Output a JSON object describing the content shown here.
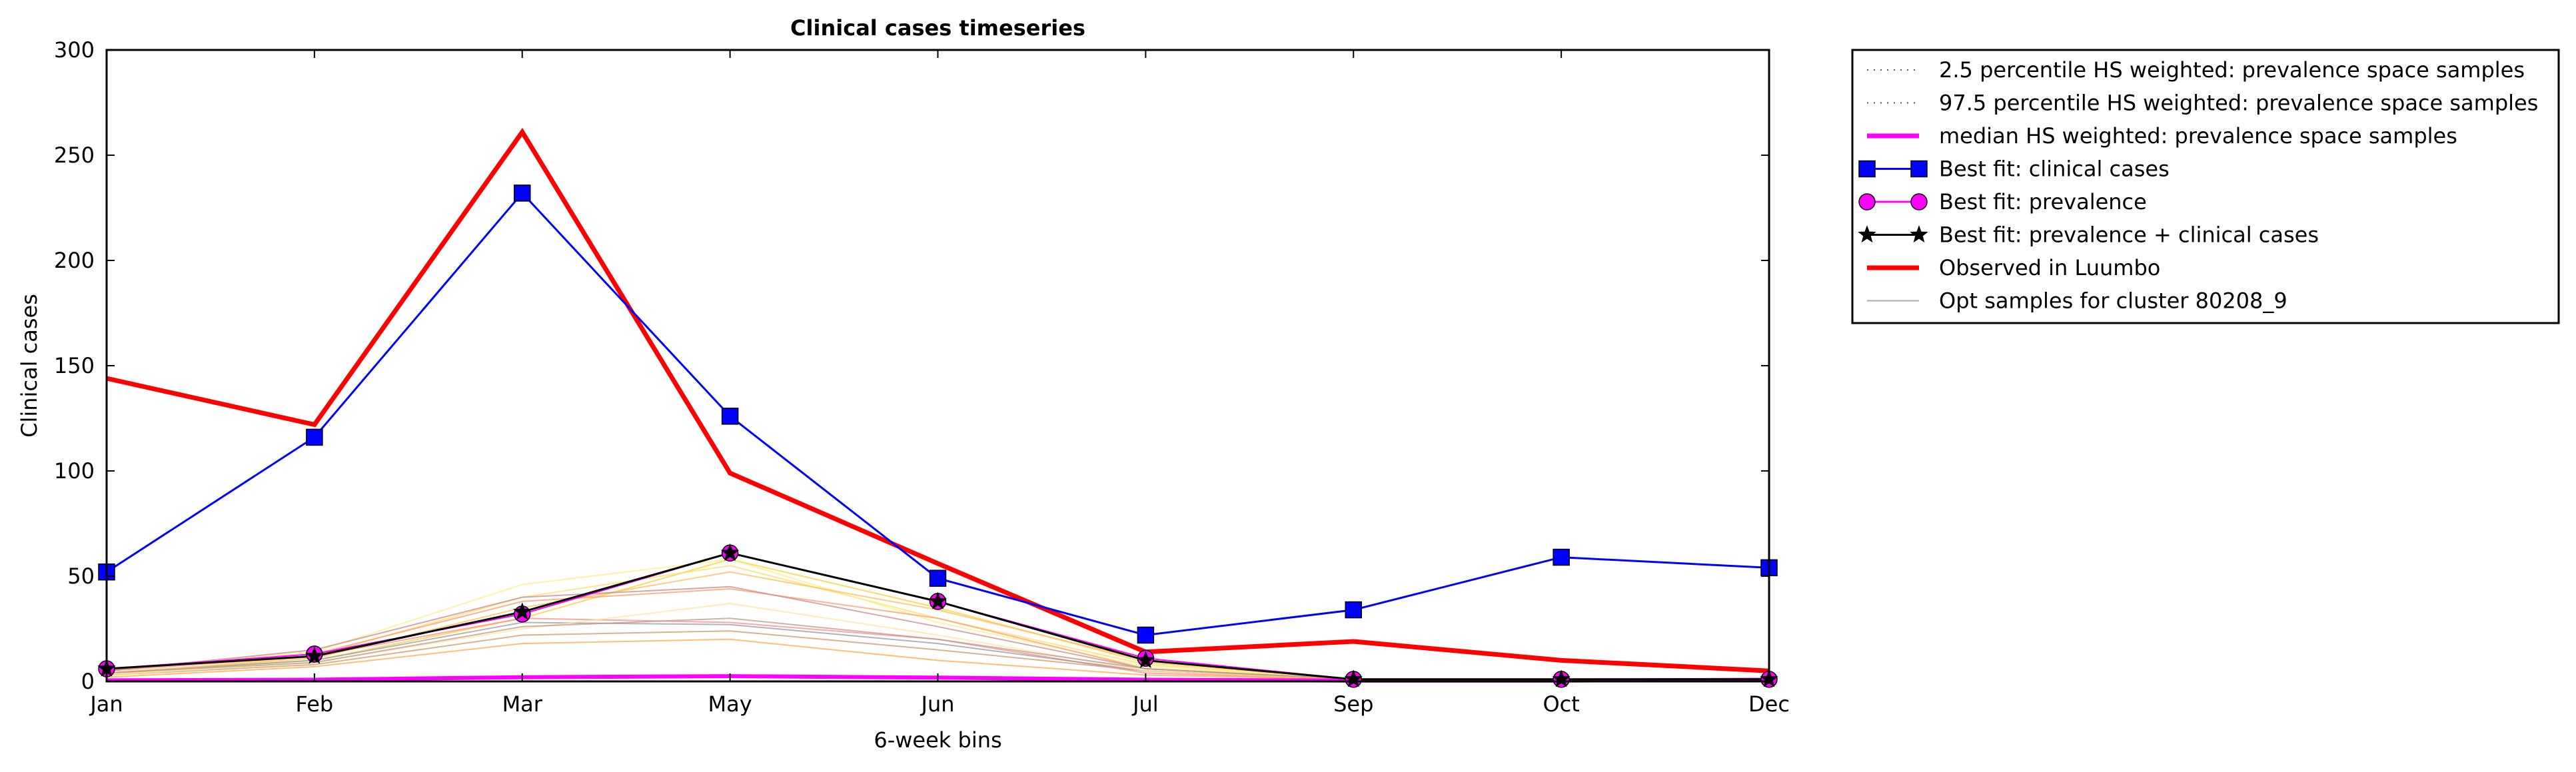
{
  "chart_data": {
    "type": "line",
    "title": "Clinical cases timeseries",
    "xlabel": "6-week bins",
    "ylabel": "Clinical cases",
    "categories": [
      "Jan",
      "Feb",
      "Mar",
      "May",
      "Jun",
      "Jul",
      "Sep",
      "Oct",
      "Dec"
    ],
    "ylim": [
      0,
      300
    ],
    "yticks": [
      0,
      50,
      100,
      150,
      200,
      250,
      300
    ],
    "grid": false,
    "legend_position": "outside-right",
    "series": [
      {
        "name": "2.5 percentile HS weighted: prevalence space samples",
        "color": "#555555",
        "style": "dotted",
        "values": [
          0.5,
          0.5,
          1.5,
          2,
          1.5,
          0.5,
          0.3,
          0.3,
          0.5
        ]
      },
      {
        "name": "97.5 percentile HS weighted: prevalence space samples",
        "color": "#555555",
        "style": "dotted",
        "values": [
          1,
          1,
          2.5,
          3,
          2,
          1,
          0.5,
          0.5,
          1
        ]
      },
      {
        "name": "median HS weighted: prevalence space samples",
        "color": "#ff00ff",
        "style": "thick",
        "values": [
          0.5,
          0.8,
          2,
          2.5,
          1.8,
          0.8,
          0.4,
          0.4,
          0.8
        ]
      },
      {
        "name": "Best fit: clinical cases",
        "color": "#0000ff",
        "marker": "square",
        "values": [
          52,
          116,
          232,
          126,
          49,
          22,
          34,
          59,
          54
        ]
      },
      {
        "name": "Best fit: prevalence",
        "color": "#ff00ff",
        "marker": "circle",
        "values": [
          6,
          13,
          32,
          61,
          38,
          11,
          1,
          1,
          1
        ]
      },
      {
        "name": "Best fit: prevalence + clinical cases",
        "color": "#000000",
        "marker": "star",
        "values": [
          6,
          12,
          33,
          61,
          38,
          10,
          1,
          1,
          1
        ]
      },
      {
        "name": "Observed in Luumbo",
        "color": "#ff0000",
        "style": "thick",
        "values": [
          144,
          122,
          261,
          99,
          56,
          14,
          19,
          10,
          5
        ]
      },
      {
        "name": "Opt samples for cluster 80208_9",
        "color": "#aaaaaa",
        "style": "thin",
        "samples": [
          {
            "color": "#ffcc33",
            "values": [
              4,
              10,
              30,
              58,
              35,
              9,
              1,
              1,
              1
            ]
          },
          {
            "color": "#ffdd66",
            "values": [
              3,
              12,
              40,
              55,
              30,
              8,
              1,
              1,
              1
            ]
          },
          {
            "color": "#ffee88",
            "values": [
              5,
              14,
              46,
              58,
              28,
              7,
              1,
              1,
              1
            ]
          },
          {
            "color": "#ff9966",
            "values": [
              6,
              13,
              38,
              44,
              30,
              6,
              1,
              1,
              1
            ]
          },
          {
            "color": "#cc9966",
            "values": [
              3,
              8,
              22,
              24,
              15,
              5,
              1,
              1,
              1
            ]
          },
          {
            "color": "#ff8888",
            "values": [
              5,
              12,
              30,
              28,
              20,
              4,
              1,
              1,
              1
            ]
          },
          {
            "color": "#999999",
            "values": [
              4,
              10,
              28,
              27,
              18,
              5,
              1,
              1,
              1
            ]
          },
          {
            "color": "#ffbb55",
            "values": [
              4,
              11,
              35,
              52,
              34,
              10,
              1,
              1,
              1
            ]
          },
          {
            "color": "#cc8888",
            "values": [
              5,
              15,
              40,
              45,
              26,
              6,
              1,
              1,
              1
            ]
          },
          {
            "color": "#ffe4a0",
            "values": [
              3,
              9,
              25,
              37,
              22,
              5,
              1,
              1,
              1
            ]
          },
          {
            "color": "#ffaa44",
            "values": [
              2,
              7,
              18,
              20,
              10,
              3,
              1,
              1,
              1
            ]
          },
          {
            "color": "#bb9988",
            "values": [
              4,
              9,
              26,
              30,
              20,
              6,
              1,
              1,
              1
            ]
          }
        ]
      }
    ]
  }
}
